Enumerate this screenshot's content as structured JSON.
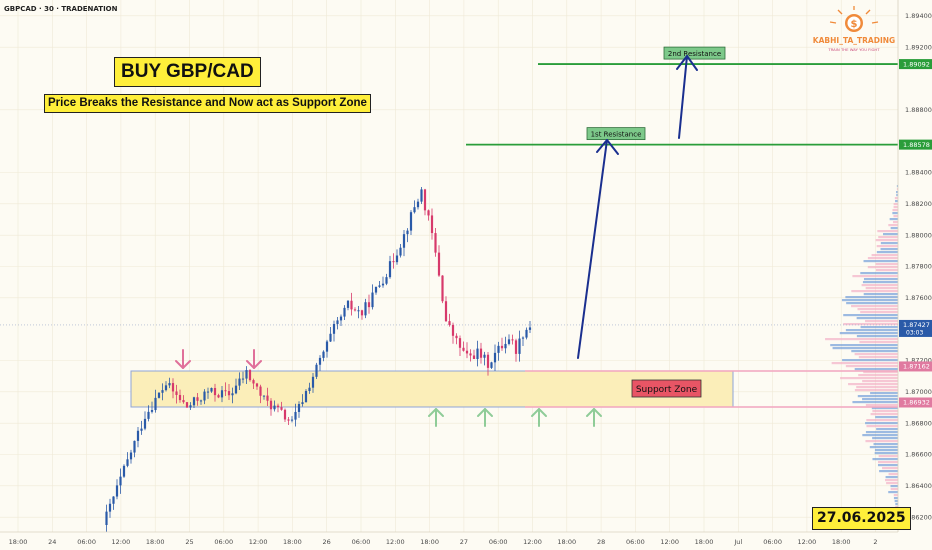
{
  "header": {
    "symbol": "GBPCAD · 30 · TRADENATION"
  },
  "logo": {
    "name": "KABHI_TA_TRADING",
    "tagline": "TRAIN THE WAY YOU FIGHT",
    "icon": "dollar-coin-icon"
  },
  "annotations": {
    "title": "BUY GBP/CAD",
    "subtitle": "Price Breaks the Resistance and Now act as Support Zone",
    "first_resistance": "1st Resistance",
    "second_resistance": "2nd Resistance",
    "support_zone": "Support Zone",
    "date": "27.06.2025"
  },
  "colors": {
    "background": "#fdfbf3",
    "bull_candle": "#2a5aa8",
    "bear_candle": "#d7396b",
    "resistance_line": "#2a9d3a",
    "zone_fill": "#fbeeb9",
    "zone_border": "#8fa4d8",
    "arrow_target": "#1a2f8f",
    "arrow_down": "#e0709a",
    "arrow_up": "#8fcc98"
  },
  "chart_data": {
    "type": "candlestick",
    "title": "",
    "y_axis": {
      "ticks": [
        "1.89400",
        "1.89200",
        "1.88800",
        "1.88400",
        "1.88200",
        "1.88000",
        "1.87800",
        "1.87600",
        "1.87200",
        "1.87000",
        "1.86800",
        "1.86600",
        "1.86400",
        "1.86200"
      ],
      "range": [
        1.8615,
        1.8945
      ]
    },
    "x_axis": {
      "ticks": [
        "18:00",
        "24",
        "06:00",
        "12:00",
        "18:00",
        "25",
        "06:00",
        "12:00",
        "18:00",
        "26",
        "06:00",
        "12:00",
        "18:00",
        "27",
        "06:00",
        "12:00",
        "18:00",
        "28",
        "06:00",
        "12:00",
        "18:00",
        "Jul",
        "06:00",
        "12:00",
        "18:00",
        "2"
      ]
    },
    "price_labels": [
      {
        "label": "1.89092",
        "value": 1.89092,
        "color": "#2a9d3a"
      },
      {
        "label": "1.88578",
        "value": 1.88578,
        "color": "#2a9d3a"
      },
      {
        "label": "1.87427",
        "value": 1.87427,
        "color": "#2a5aa8",
        "sub": "03:03"
      },
      {
        "label": "1.87162",
        "value": 1.87162,
        "color": "#e07aa0"
      },
      {
        "label": "1.86932",
        "value": 1.86932,
        "color": "#e07aa0"
      }
    ],
    "levels": {
      "second_resistance": 1.89092,
      "first_resistance": 1.88578,
      "support_zone": [
        1.86932,
        1.87162
      ],
      "last_price": 1.87427
    },
    "ohlc_path": [
      [
        0,
        1.8615
      ],
      [
        6,
        1.865
      ],
      [
        12,
        1.8685
      ],
      [
        18,
        1.8705
      ],
      [
        24,
        1.869
      ],
      [
        30,
        1.87
      ],
      [
        36,
        1.8698
      ],
      [
        41,
        1.8712
      ],
      [
        46,
        1.8695
      ],
      [
        50,
        1.8688
      ],
      [
        54,
        1.868
      ],
      [
        58,
        1.87
      ],
      [
        62,
        1.872
      ],
      [
        66,
        1.874
      ],
      [
        70,
        1.8755
      ],
      [
        74,
        1.875
      ],
      [
        78,
        1.8765
      ],
      [
        82,
        1.878
      ],
      [
        86,
        1.88
      ],
      [
        89,
        1.8818
      ],
      [
        91,
        1.8828
      ],
      [
        94,
        1.88
      ],
      [
        96,
        1.8775
      ],
      [
        98,
        1.8745
      ],
      [
        101,
        1.8732
      ],
      [
        104,
        1.8722
      ],
      [
        107,
        1.8725
      ],
      [
        110,
        1.8718
      ],
      [
        113,
        1.8727
      ],
      [
        116,
        1.8735
      ],
      [
        118,
        1.8727
      ],
      [
        120,
        1.8738
      ],
      [
        122,
        1.8742
      ]
    ]
  }
}
